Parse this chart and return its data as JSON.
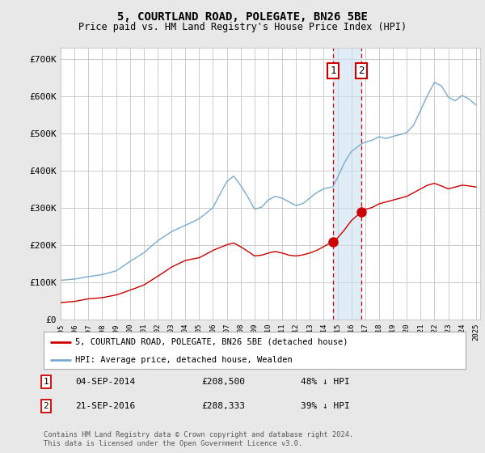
{
  "title": "5, COURTLAND ROAD, POLEGATE, BN26 5BE",
  "subtitle": "Price paid vs. HM Land Registry's House Price Index (HPI)",
  "ylim": [
    0,
    730000
  ],
  "yticks": [
    0,
    100000,
    200000,
    300000,
    400000,
    500000,
    600000,
    700000
  ],
  "ytick_labels": [
    "£0",
    "£100K",
    "£200K",
    "£300K",
    "£400K",
    "£500K",
    "£600K",
    "£700K"
  ],
  "x_start_year": 1995,
  "x_end_year": 2025,
  "purchase_1": {
    "date_num": 2014.67,
    "price": 208500,
    "label": "1"
  },
  "purchase_2": {
    "date_num": 2016.72,
    "price": 288333,
    "label": "2"
  },
  "legend_red": "5, COURTLAND ROAD, POLEGATE, BN26 5BE (detached house)",
  "legend_blue": "HPI: Average price, detached house, Wealden",
  "footnote": "Contains HM Land Registry data © Crown copyright and database right 2024.\nThis data is licensed under the Open Government Licence v3.0.",
  "bg_color": "#e8e8e8",
  "plot_bg_color": "#ffffff",
  "grid_color": "#cccccc",
  "red_color": "#cc0000",
  "blue_color": "#7aaad0"
}
